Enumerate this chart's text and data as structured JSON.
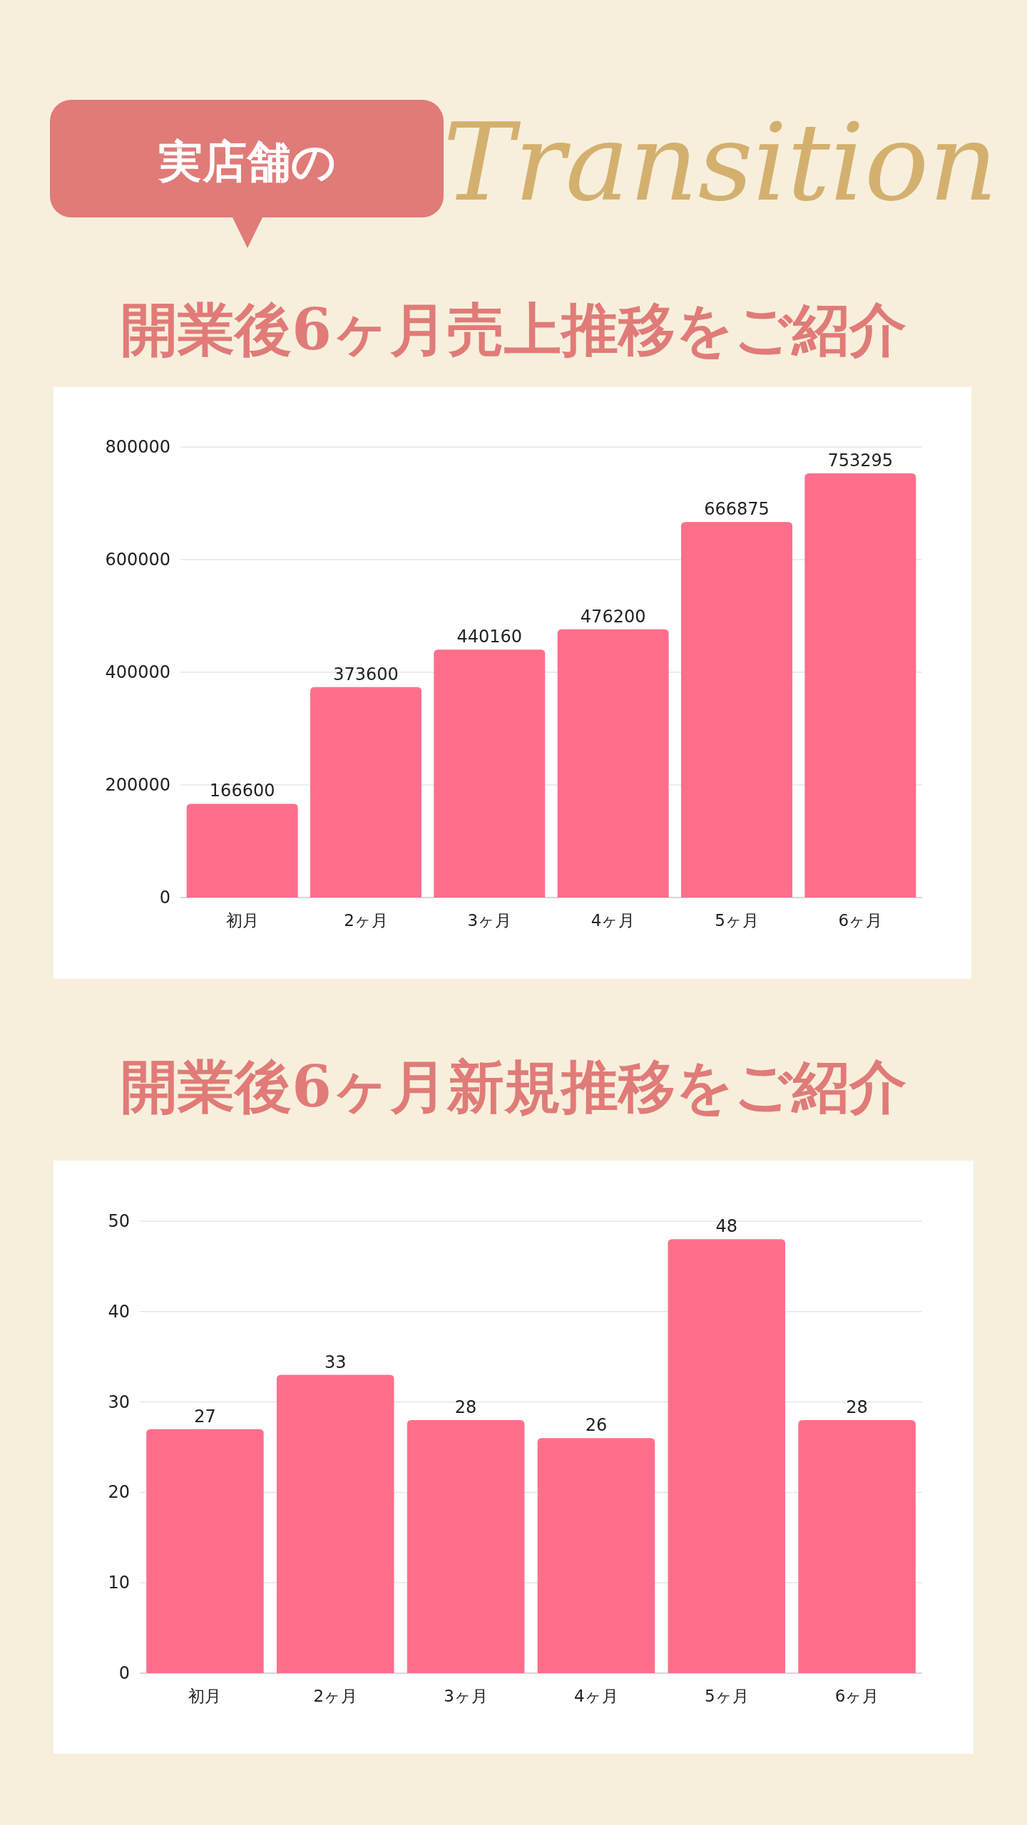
{
  "chart_data": [
    {
      "type": "bar",
      "title": "開業後6ヶ月売上推移をご紹介",
      "annotations": [
        "実店舗の",
        "Transition"
      ],
      "categories": [
        "初月",
        "2ヶ月",
        "3ヶ月",
        "4ヶ月",
        "5ヶ月",
        "6ヶ月"
      ],
      "values": [
        166600,
        373600,
        440160,
        476200,
        666875,
        753295
      ],
      "color": "#ff6f8b",
      "ylim": [
        0,
        800000
      ],
      "yticks": [
        0,
        200000,
        400000,
        600000,
        800000
      ],
      "grid": "y",
      "data_labels": true
    },
    {
      "type": "bar",
      "title": "開業後6ヶ月新規推移をご紹介",
      "categories": [
        "初月",
        "2ヶ月",
        "3ヶ月",
        "4ヶ月",
        "5ヶ月",
        "6ヶ月"
      ],
      "values": [
        27,
        33,
        28,
        26,
        48,
        28
      ],
      "color": "#ff6f8b",
      "ylim": [
        0,
        50
      ],
      "yticks": [
        0,
        10,
        20,
        30,
        40,
        50
      ],
      "grid": "y",
      "data_labels": true
    }
  ]
}
